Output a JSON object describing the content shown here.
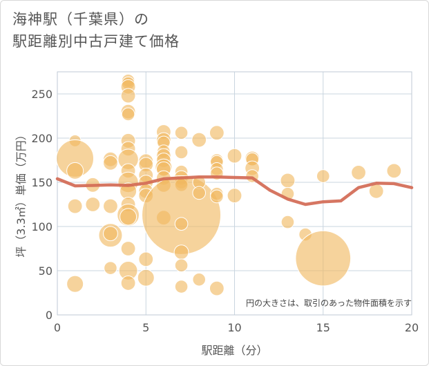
{
  "title_line1": "海神駅（千葉県）の",
  "title_line2": "駅距離別中古戸建て価格",
  "chart_data": {
    "type": "scatter",
    "xlabel": "駅距離（分）",
    "ylabel": "坪（3.3㎡）単価（万円）",
    "note": "円の大きさは、取引のあった物件面積を示す",
    "xlim": [
      0,
      20
    ],
    "ylim": [
      0,
      275
    ],
    "xticks": [
      0,
      5,
      10,
      15,
      20
    ],
    "yticks": [
      0,
      50,
      100,
      150,
      200,
      250
    ],
    "bubble_color": "#f0b860",
    "line_color": "#d36a55",
    "grid": true,
    "points": [
      {
        "x": 1,
        "y": 197,
        "s": 1
      },
      {
        "x": 1,
        "y": 177,
        "s": 10
      },
      {
        "x": 1,
        "y": 163,
        "s": 2
      },
      {
        "x": 1,
        "y": 123,
        "s": 1.5
      },
      {
        "x": 1,
        "y": 35,
        "s": 2
      },
      {
        "x": 2,
        "y": 147,
        "s": 1.5
      },
      {
        "x": 2,
        "y": 125,
        "s": 1.5
      },
      {
        "x": 3,
        "y": 176,
        "s": 1.5
      },
      {
        "x": 3,
        "y": 172,
        "s": 1.5
      },
      {
        "x": 3,
        "y": 123,
        "s": 1.5
      },
      {
        "x": 3,
        "y": 90,
        "s": 4
      },
      {
        "x": 3,
        "y": 92,
        "s": 1.5
      },
      {
        "x": 3,
        "y": 53,
        "s": 1.2
      },
      {
        "x": 4,
        "y": 265,
        "s": 1.2
      },
      {
        "x": 4,
        "y": 262,
        "s": 1.2
      },
      {
        "x": 4,
        "y": 258,
        "s": 1.5
      },
      {
        "x": 4,
        "y": 248,
        "s": 1.5
      },
      {
        "x": 4,
        "y": 230,
        "s": 1.5
      },
      {
        "x": 4,
        "y": 227,
        "s": 1.2
      },
      {
        "x": 4,
        "y": 197,
        "s": 1.5
      },
      {
        "x": 4,
        "y": 188,
        "s": 1.5
      },
      {
        "x": 4,
        "y": 176,
        "s": 3
      },
      {
        "x": 4,
        "y": 163,
        "s": 1.5
      },
      {
        "x": 4,
        "y": 150,
        "s": 3
      },
      {
        "x": 4,
        "y": 140,
        "s": 2
      },
      {
        "x": 4,
        "y": 125,
        "s": 1.5
      },
      {
        "x": 4,
        "y": 113,
        "s": 3.5
      },
      {
        "x": 4,
        "y": 111,
        "s": 2
      },
      {
        "x": 4,
        "y": 75,
        "s": 1.5
      },
      {
        "x": 4,
        "y": 50,
        "s": 2.5
      },
      {
        "x": 4,
        "y": 36,
        "s": 1.5
      },
      {
        "x": 5,
        "y": 174,
        "s": 1.5
      },
      {
        "x": 5,
        "y": 170,
        "s": 1.5
      },
      {
        "x": 5,
        "y": 158,
        "s": 1.5
      },
      {
        "x": 5,
        "y": 150,
        "s": 1.5
      },
      {
        "x": 5,
        "y": 140,
        "s": 1.5
      },
      {
        "x": 5,
        "y": 135,
        "s": 1.5
      },
      {
        "x": 5,
        "y": 63,
        "s": 1.5
      },
      {
        "x": 5,
        "y": 42,
        "s": 2
      },
      {
        "x": 6,
        "y": 207,
        "s": 1.5
      },
      {
        "x": 6,
        "y": 198,
        "s": 1.5
      },
      {
        "x": 6,
        "y": 195,
        "s": 1.2
      },
      {
        "x": 6,
        "y": 185,
        "s": 1.2
      },
      {
        "x": 6,
        "y": 180,
        "s": 1.5
      },
      {
        "x": 6,
        "y": 175,
        "s": 1.5
      },
      {
        "x": 6,
        "y": 167,
        "s": 2
      },
      {
        "x": 6,
        "y": 165,
        "s": 1.5
      },
      {
        "x": 6,
        "y": 155,
        "s": 1.5
      },
      {
        "x": 6,
        "y": 147,
        "s": 1.5
      },
      {
        "x": 6,
        "y": 110,
        "s": 1.5
      },
      {
        "x": 7,
        "y": 206,
        "s": 1.2
      },
      {
        "x": 7,
        "y": 184,
        "s": 1.2
      },
      {
        "x": 7,
        "y": 162,
        "s": 1.2
      },
      {
        "x": 7,
        "y": 155,
        "s": 1.5
      },
      {
        "x": 7,
        "y": 150,
        "s": 1.2
      },
      {
        "x": 7,
        "y": 147,
        "s": 1.2
      },
      {
        "x": 7,
        "y": 113,
        "s": 45
      },
      {
        "x": 7,
        "y": 103,
        "s": 1.2
      },
      {
        "x": 7,
        "y": 71,
        "s": 1.5
      },
      {
        "x": 7,
        "y": 56,
        "s": 1.2
      },
      {
        "x": 7,
        "y": 32,
        "s": 1.2
      },
      {
        "x": 8,
        "y": 198,
        "s": 1.5
      },
      {
        "x": 8,
        "y": 150,
        "s": 1.2
      },
      {
        "x": 8,
        "y": 138,
        "s": 1.2
      },
      {
        "x": 8,
        "y": 40,
        "s": 1.2
      },
      {
        "x": 9,
        "y": 206,
        "s": 1.5
      },
      {
        "x": 9,
        "y": 175,
        "s": 1.2
      },
      {
        "x": 9,
        "y": 173,
        "s": 1.2
      },
      {
        "x": 9,
        "y": 165,
        "s": 1.2
      },
      {
        "x": 9,
        "y": 160,
        "s": 1.2
      },
      {
        "x": 9,
        "y": 137,
        "s": 1.2
      },
      {
        "x": 9,
        "y": 134,
        "s": 1.2
      },
      {
        "x": 9,
        "y": 30,
        "s": 1.5
      },
      {
        "x": 10,
        "y": 180,
        "s": 1.5
      },
      {
        "x": 10,
        "y": 135,
        "s": 1.5
      },
      {
        "x": 11,
        "y": 177,
        "s": 1.5
      },
      {
        "x": 11,
        "y": 176,
        "s": 1.2
      },
      {
        "x": 11,
        "y": 166,
        "s": 1.5
      },
      {
        "x": 11,
        "y": 157,
        "s": 1.2
      },
      {
        "x": 13,
        "y": 152,
        "s": 1.5
      },
      {
        "x": 13,
        "y": 137,
        "s": 1.2
      },
      {
        "x": 13,
        "y": 105,
        "s": 1.2
      },
      {
        "x": 14,
        "y": 91,
        "s": 1.2
      },
      {
        "x": 15,
        "y": 157,
        "s": 1.2
      },
      {
        "x": 15,
        "y": 64,
        "s": 22
      },
      {
        "x": 17,
        "y": 161,
        "s": 1.5
      },
      {
        "x": 18,
        "y": 140,
        "s": 1.5
      },
      {
        "x": 19,
        "y": 163,
        "s": 1.5
      }
    ],
    "line": {
      "x": [
        0,
        1,
        2,
        3,
        4,
        5,
        6,
        7,
        8,
        9,
        10,
        11,
        12,
        13,
        14,
        15,
        16,
        17,
        18,
        19,
        20
      ],
      "y": [
        154,
        146,
        146.5,
        147,
        146.5,
        149,
        154,
        155,
        156,
        156,
        155.5,
        155,
        141,
        131,
        125,
        128,
        129,
        144,
        149,
        148.5,
        144
      ]
    }
  }
}
